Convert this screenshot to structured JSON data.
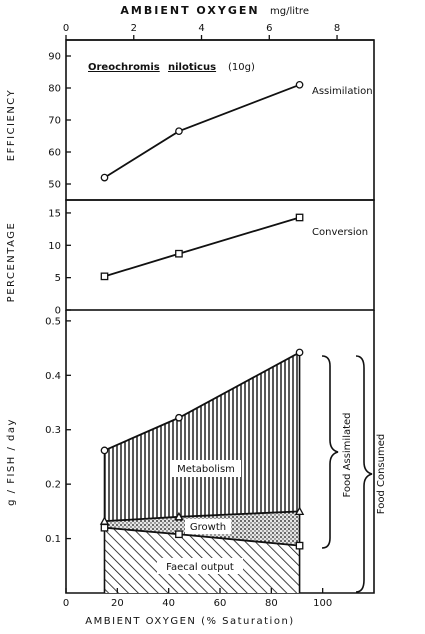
{
  "chart_data": [
    {
      "type": "line",
      "top_axis": {
        "label": "AMBIENT OXYGEN",
        "unit": "mg/litre",
        "ticks": [
          "0",
          "2",
          "4",
          "6",
          "8"
        ]
      },
      "title": "Oreochromis niloticus (10g)",
      "title_species": "Oreochromis",
      "title_species2": "niloticus",
      "title_size": "(10g)",
      "ylabel": "EFFICIENCY",
      "ylim": [
        45,
        95
      ],
      "yticks": [
        "50",
        "60",
        "70",
        "80",
        "90"
      ],
      "series": [
        {
          "name": "Assimilation",
          "marker": "circle",
          "x": [
            15,
            44,
            91
          ],
          "y": [
            52,
            66.5,
            81
          ]
        }
      ]
    },
    {
      "type": "line",
      "ylabel": "PERCENTAGE",
      "ylim": [
        0,
        17
      ],
      "yticks": [
        "0",
        "5",
        "10",
        "15"
      ],
      "series": [
        {
          "name": "Conversion",
          "marker": "square",
          "x": [
            15,
            44,
            91
          ],
          "y": [
            5.2,
            8.7,
            14.3
          ]
        }
      ]
    },
    {
      "type": "area",
      "ylabel": "g / FISH / day",
      "xlabel": "AMBIENT OXYGEN (% Saturation)",
      "xlim": [
        0,
        120
      ],
      "xticks": [
        "0",
        "20",
        "40",
        "60",
        "80",
        "100"
      ],
      "ylim": [
        0,
        0.52
      ],
      "yticks": [
        "0.1",
        "0.2",
        "0.3",
        "0.4",
        "0.5"
      ],
      "x": [
        15,
        44,
        91
      ],
      "series": [
        {
          "marker": "circle",
          "values": [
            0.262,
            0.322,
            0.442
          ]
        },
        {
          "marker": "triangle",
          "values": [
            0.132,
            0.14,
            0.15
          ]
        },
        {
          "marker": "square",
          "values": [
            0.12,
            0.108,
            0.087
          ]
        }
      ],
      "regions": {
        "metabolism": "Metabolism",
        "growth": "Growth",
        "faecal": "Faecal output"
      },
      "brackets": {
        "assimilated": "Food   Assimilated",
        "consumed": "Food   Consumed"
      }
    }
  ]
}
